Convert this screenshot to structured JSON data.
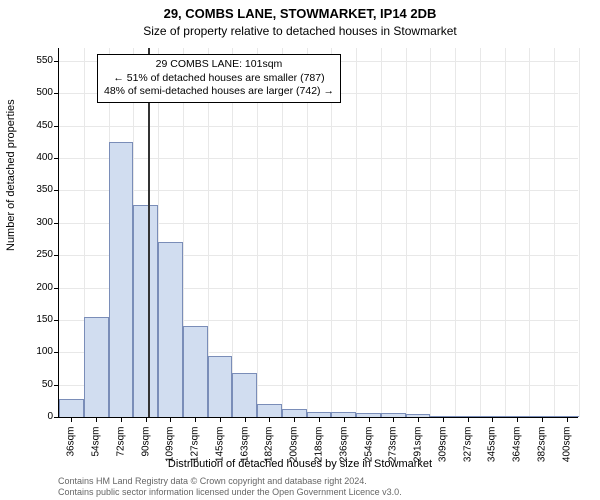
{
  "title": "29, COMBS LANE, STOWMARKET, IP14 2DB",
  "subtitle": "Size of property relative to detached houses in Stowmarket",
  "chart": {
    "type": "histogram",
    "ylabel": "Number of detached properties",
    "xlabel": "Distribution of detached houses by size in Stowmarket",
    "ymin": 0,
    "ymax": 570,
    "ytick_step": 50,
    "bar_fill": "#d1ddf0",
    "bar_stroke": "#7a8db8",
    "grid_color": "#e8e8e8",
    "reference_line_color": "#333333",
    "reference_x_index": 3.6,
    "background_color": "#ffffff",
    "bar_count": 21,
    "bars": [
      {
        "label": "36sqm",
        "value": 28
      },
      {
        "label": "54sqm",
        "value": 155
      },
      {
        "label": "72sqm",
        "value": 425
      },
      {
        "label": "90sqm",
        "value": 328
      },
      {
        "label": "109sqm",
        "value": 270
      },
      {
        "label": "127sqm",
        "value": 140
      },
      {
        "label": "145sqm",
        "value": 95
      },
      {
        "label": "163sqm",
        "value": 68
      },
      {
        "label": "182sqm",
        "value": 20
      },
      {
        "label": "200sqm",
        "value": 12
      },
      {
        "label": "218sqm",
        "value": 8
      },
      {
        "label": "236sqm",
        "value": 7
      },
      {
        "label": "254sqm",
        "value": 6
      },
      {
        "label": "273sqm",
        "value": 6
      },
      {
        "label": "291sqm",
        "value": 5
      },
      {
        "label": "309sqm",
        "value": 2
      },
      {
        "label": "327sqm",
        "value": 0
      },
      {
        "label": "345sqm",
        "value": 2
      },
      {
        "label": "364sqm",
        "value": 0
      },
      {
        "label": "382sqm",
        "value": 0
      },
      {
        "label": "400sqm",
        "value": 2
      }
    ]
  },
  "annotation": {
    "line1": "29 COMBS LANE: 101sqm",
    "line2": "← 51% of detached houses are smaller (787)",
    "line3": "48% of semi-detached houses are larger (742) →"
  },
  "footer": {
    "line1": "Contains HM Land Registry data © Crown copyright and database right 2024.",
    "line2": "Contains public sector information licensed under the Open Government Licence v3.0."
  }
}
